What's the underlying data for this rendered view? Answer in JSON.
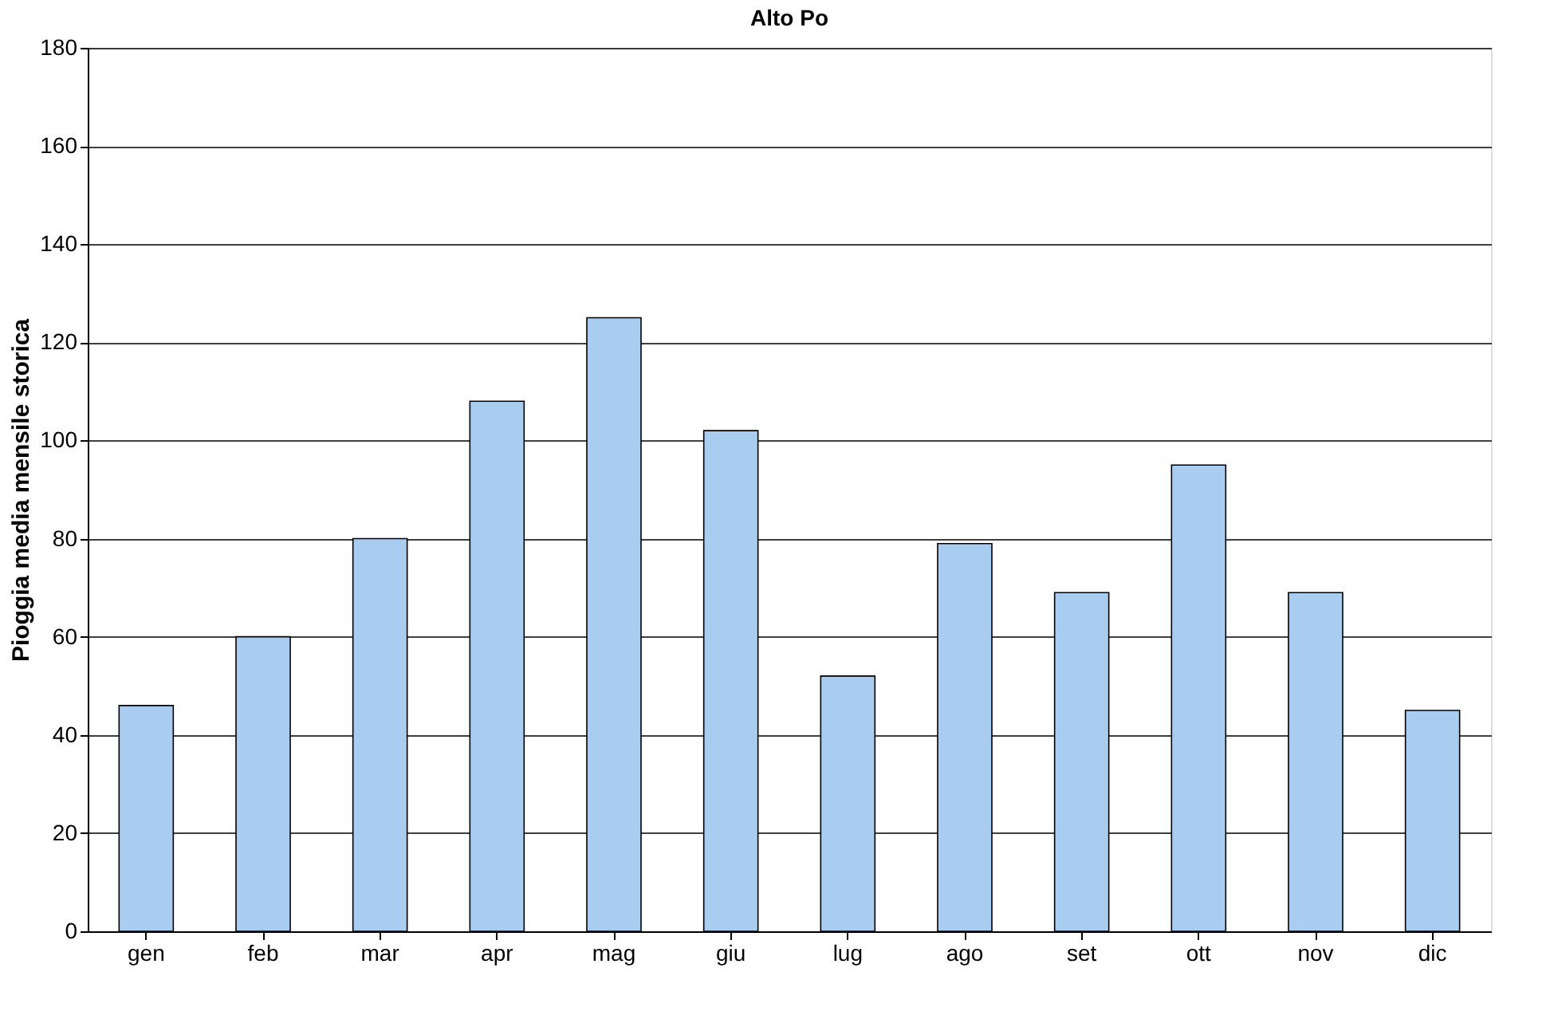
{
  "chart_data": {
    "type": "bar",
    "title": "Alto Po",
    "ylabel": "Pioggia media mensile storica",
    "categories": [
      "gen",
      "feb",
      "mar",
      "apr",
      "mag",
      "giu",
      "lug",
      "ago",
      "set",
      "ott",
      "nov",
      "dic"
    ],
    "values": [
      46,
      60,
      80,
      108,
      125,
      102,
      52,
      79,
      69,
      95,
      69,
      45
    ],
    "color": "#a9cdf0",
    "ylim": [
      0,
      180
    ],
    "yticks": [
      0,
      20,
      40,
      60,
      80,
      100,
      120,
      140,
      160,
      180
    ],
    "grid": "y"
  }
}
